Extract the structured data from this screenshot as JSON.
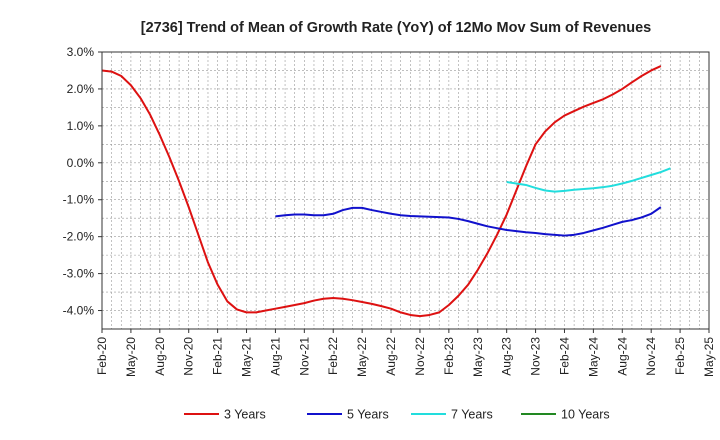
{
  "chart_data": {
    "type": "line",
    "title": "[2736]  Trend of Mean of Growth Rate (YoY) of 12Mo Mov Sum of Revenues",
    "xlabel": "",
    "ylabel": "",
    "ylim": [
      -4.5,
      3.0
    ],
    "yticks": [
      "3.0%",
      "2.0%",
      "1.0%",
      "0.0%",
      "-1.0%",
      "-2.0%",
      "-3.0%",
      "-4.0%"
    ],
    "ytick_values": [
      3.0,
      2.0,
      1.0,
      0.0,
      -1.0,
      -2.0,
      -3.0,
      -4.0
    ],
    "xticks": [
      "Feb-20",
      "May-20",
      "Aug-20",
      "Nov-20",
      "Feb-21",
      "May-21",
      "Aug-21",
      "Nov-21",
      "Feb-22",
      "May-22",
      "Aug-22",
      "Nov-22",
      "Feb-23",
      "May-23",
      "Aug-23",
      "Nov-23",
      "Feb-24",
      "May-24",
      "Aug-24",
      "Nov-24",
      "Feb-25",
      "May-25"
    ],
    "x_months": 63,
    "grid": true,
    "legend_position": "bottom",
    "series": [
      {
        "name": "3 Years",
        "color": "#dd1111",
        "start_month": 0,
        "values": [
          2.5,
          2.47,
          2.35,
          2.1,
          1.75,
          1.3,
          0.75,
          0.15,
          -0.5,
          -1.2,
          -1.95,
          -2.7,
          -3.3,
          -3.75,
          -3.97,
          -4.05,
          -4.05,
          -4.0,
          -3.95,
          -3.9,
          -3.85,
          -3.8,
          -3.73,
          -3.68,
          -3.66,
          -3.68,
          -3.72,
          -3.77,
          -3.82,
          -3.88,
          -3.95,
          -4.05,
          -4.12,
          -4.15,
          -4.12,
          -4.05,
          -3.85,
          -3.6,
          -3.3,
          -2.9,
          -2.45,
          -1.95,
          -1.4,
          -0.75,
          -0.1,
          0.5,
          0.85,
          1.1,
          1.28,
          1.4,
          1.52,
          1.62,
          1.72,
          1.85,
          2.0,
          2.18,
          2.35,
          2.5,
          2.62
        ]
      },
      {
        "name": "5 Years",
        "color": "#1111cc",
        "start_month": 18,
        "values": [
          -1.45,
          -1.42,
          -1.4,
          -1.4,
          -1.42,
          -1.42,
          -1.38,
          -1.28,
          -1.22,
          -1.22,
          -1.28,
          -1.33,
          -1.38,
          -1.42,
          -1.44,
          -1.45,
          -1.46,
          -1.47,
          -1.48,
          -1.52,
          -1.58,
          -1.65,
          -1.72,
          -1.77,
          -1.82,
          -1.85,
          -1.88,
          -1.9,
          -1.93,
          -1.95,
          -1.97,
          -1.95,
          -1.9,
          -1.83,
          -1.76,
          -1.68,
          -1.6,
          -1.55,
          -1.48,
          -1.38,
          -1.2
        ]
      },
      {
        "name": "7 Years",
        "color": "#22dddd",
        "start_month": 42,
        "values": [
          -0.52,
          -0.56,
          -0.6,
          -0.68,
          -0.75,
          -0.78,
          -0.76,
          -0.73,
          -0.71,
          -0.69,
          -0.66,
          -0.62,
          -0.56,
          -0.49,
          -0.41,
          -0.33,
          -0.25,
          -0.15
        ]
      },
      {
        "name": "10 Years",
        "color": "#228822",
        "start_month": 0,
        "values": []
      }
    ]
  }
}
